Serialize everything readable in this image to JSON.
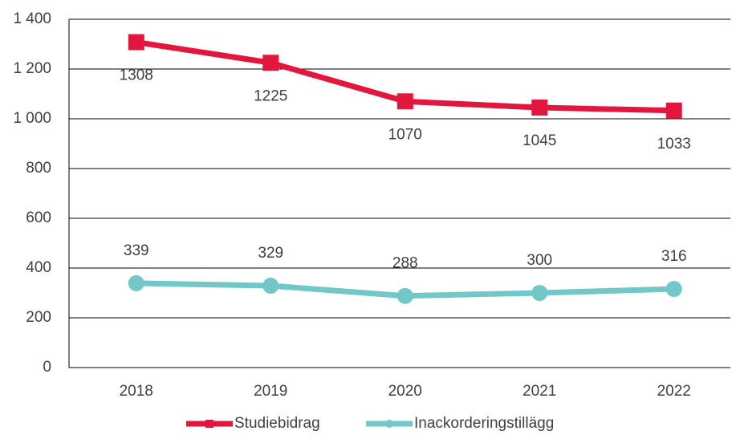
{
  "chart_data": {
    "type": "line",
    "categories": [
      "2018",
      "2019",
      "2020",
      "2021",
      "2022"
    ],
    "series": [
      {
        "name": "Studiebidrag",
        "color": "#e3173e",
        "marker": "square",
        "values": [
          1308,
          1225,
          1070,
          1045,
          1033
        ]
      },
      {
        "name": "Inackorderingstillägg",
        "color": "#72c7c8",
        "marker": "circle",
        "values": [
          339,
          329,
          288,
          300,
          316
        ]
      }
    ],
    "ylim": [
      0,
      1400
    ],
    "yticks": [
      0,
      200,
      400,
      600,
      800,
      {
        "value": 1000,
        "label": "1 000"
      },
      {
        "value": 1200,
        "label": "1 200"
      },
      {
        "value": 1400,
        "label": "1 400"
      }
    ],
    "grid": true,
    "legend": "bottom"
  }
}
